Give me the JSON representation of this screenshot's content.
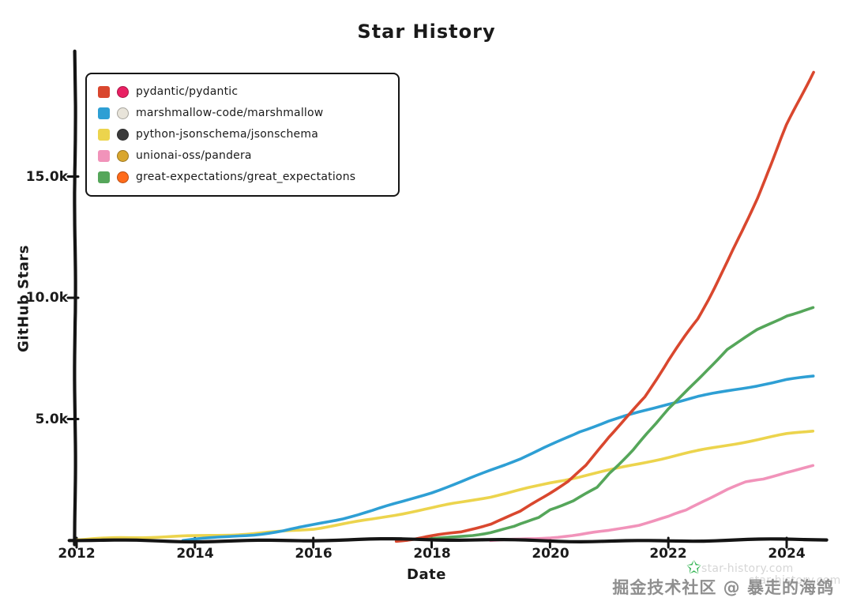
{
  "title": "Star History",
  "watermark": {
    "community_text": "掘金技术社区 @ 暴走的海鸽",
    "site_text_1": "star-history.com",
    "site_text_2": "star-history.com",
    "star_icon": "green-star-icon",
    "star_icon_color": "#2fb34f",
    "star_glyph": "✩"
  },
  "chart_data": {
    "type": "line",
    "title": "Star History",
    "xlabel": "Date",
    "ylabel": "GitHub Stars",
    "grid": false,
    "legend_position": "top-left",
    "x_range": [
      2012,
      2024.6
    ],
    "y_range": [
      0,
      20000
    ],
    "x_ticks": [
      2012,
      2014,
      2016,
      2018,
      2020,
      2022,
      2024
    ],
    "y_ticks": [
      {
        "value": 5000,
        "label": "5.0k"
      },
      {
        "value": 10000,
        "label": "10.0k"
      },
      {
        "value": 15000,
        "label": "15.0k"
      }
    ],
    "series": [
      {
        "name": "pydantic/pydantic",
        "color": "#d9472e",
        "logo_color": "#e92063",
        "points": [
          [
            2017.4,
            0
          ],
          [
            2017.7,
            60
          ],
          [
            2018,
            160
          ],
          [
            2018.5,
            330
          ],
          [
            2019,
            650
          ],
          [
            2019.5,
            1150
          ],
          [
            2020,
            1950
          ],
          [
            2020.3,
            2450
          ],
          [
            2020.6,
            3100
          ],
          [
            2021,
            4300
          ],
          [
            2021.3,
            5100
          ],
          [
            2021.6,
            5900
          ],
          [
            2022,
            7400
          ],
          [
            2022.5,
            9100
          ],
          [
            2023,
            11500
          ],
          [
            2023.5,
            14100
          ],
          [
            2024,
            17100
          ],
          [
            2024.45,
            19300
          ]
        ]
      },
      {
        "name": "marshmallow-code/marshmallow",
        "color": "#2e9fd4",
        "logo_color": "#e8e4da",
        "points": [
          [
            2013.8,
            0
          ],
          [
            2014,
            60
          ],
          [
            2014.5,
            140
          ],
          [
            2015,
            260
          ],
          [
            2015.5,
            420
          ],
          [
            2016,
            650
          ],
          [
            2016.5,
            900
          ],
          [
            2017,
            1200
          ],
          [
            2017.5,
            1550
          ],
          [
            2018,
            1950
          ],
          [
            2018.5,
            2400
          ],
          [
            2019,
            2900
          ],
          [
            2019.5,
            3400
          ],
          [
            2020,
            3950
          ],
          [
            2020.5,
            4500
          ],
          [
            2021,
            4900
          ],
          [
            2021.5,
            5250
          ],
          [
            2022,
            5600
          ],
          [
            2022.5,
            5900
          ],
          [
            2023,
            6150
          ],
          [
            2023.5,
            6400
          ],
          [
            2024,
            6650
          ],
          [
            2024.45,
            6800
          ]
        ]
      },
      {
        "name": "python-jsonschema/jsonschema",
        "color": "#ecd44d",
        "logo_color": "#3b3b3b",
        "points": [
          [
            2012,
            30
          ],
          [
            2013,
            85
          ],
          [
            2014,
            155
          ],
          [
            2015,
            300
          ],
          [
            2016,
            500
          ],
          [
            2017,
            850
          ],
          [
            2018,
            1300
          ],
          [
            2019,
            1800
          ],
          [
            2019.5,
            2100
          ],
          [
            2020,
            2400
          ],
          [
            2020.5,
            2650
          ],
          [
            2021,
            2900
          ],
          [
            2022,
            3400
          ],
          [
            2023,
            3900
          ],
          [
            2024,
            4400
          ],
          [
            2024.45,
            4550
          ]
        ]
      },
      {
        "name": "unionai-oss/pandera",
        "color": "#f193ba",
        "logo_color": "#d9a62e",
        "points": [
          [
            2019,
            0
          ],
          [
            2019.5,
            60
          ],
          [
            2020,
            150
          ],
          [
            2020.5,
            250
          ],
          [
            2021,
            400
          ],
          [
            2021.5,
            620
          ],
          [
            2022,
            950
          ],
          [
            2022.3,
            1200
          ],
          [
            2022.6,
            1600
          ],
          [
            2023,
            2100
          ],
          [
            2023.3,
            2400
          ],
          [
            2023.6,
            2550
          ],
          [
            2024,
            2850
          ],
          [
            2024.45,
            3100
          ]
        ]
      },
      {
        "name": "great-expectations/great_expectations",
        "color": "#55a65a",
        "logo_color": "#ff6b1a",
        "points": [
          [
            2017.9,
            0
          ],
          [
            2018.3,
            80
          ],
          [
            2018.7,
            180
          ],
          [
            2019,
            300
          ],
          [
            2019.4,
            550
          ],
          [
            2019.8,
            950
          ],
          [
            2020,
            1300
          ],
          [
            2020.4,
            1650
          ],
          [
            2020.8,
            2200
          ],
          [
            2021,
            2800
          ],
          [
            2021.4,
            3700
          ],
          [
            2021.8,
            4800
          ],
          [
            2022,
            5400
          ],
          [
            2022.5,
            6600
          ],
          [
            2023,
            7900
          ],
          [
            2023.5,
            8700
          ],
          [
            2024,
            9300
          ],
          [
            2024.45,
            9600
          ]
        ]
      }
    ]
  }
}
